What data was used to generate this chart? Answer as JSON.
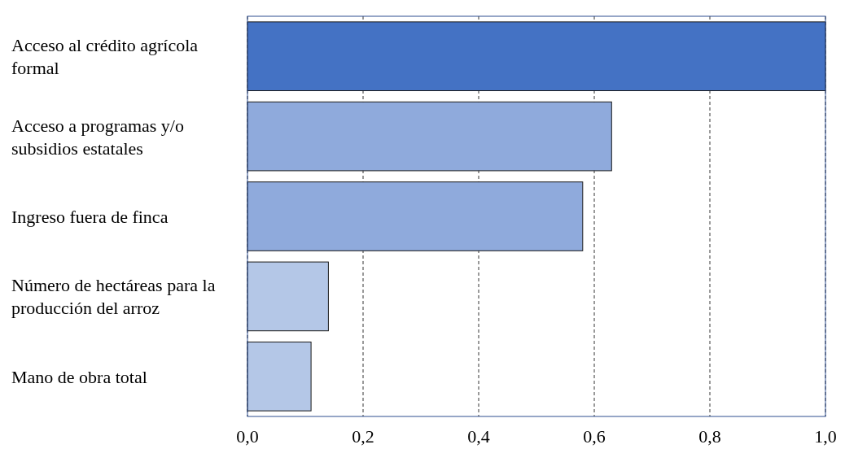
{
  "chart_data": {
    "type": "bar",
    "orientation": "horizontal",
    "categories": [
      "Acceso al crédito agrícola formal",
      "Acceso a programas y/o subsidios estatales",
      "Ingreso fuera de finca",
      "Número de hectáreas para la producción del arroz",
      "Mano de obra total"
    ],
    "values": [
      1.0,
      0.63,
      0.58,
      0.14,
      0.11
    ],
    "colors": [
      "#4472c4",
      "#8faadc",
      "#8faadc",
      "#b4c7e7",
      "#b4c7e7"
    ],
    "xlim": [
      0,
      1
    ],
    "xticks": [
      {
        "value": 0,
        "label": "0,0"
      },
      {
        "value": 0.2,
        "label": "0,2"
      },
      {
        "value": 0.4,
        "label": "0,4"
      },
      {
        "value": 0.6,
        "label": "0,6"
      },
      {
        "value": 0.8,
        "label": "0,8"
      },
      {
        "value": 1,
        "label": "1,0"
      }
    ],
    "grid": "x"
  }
}
